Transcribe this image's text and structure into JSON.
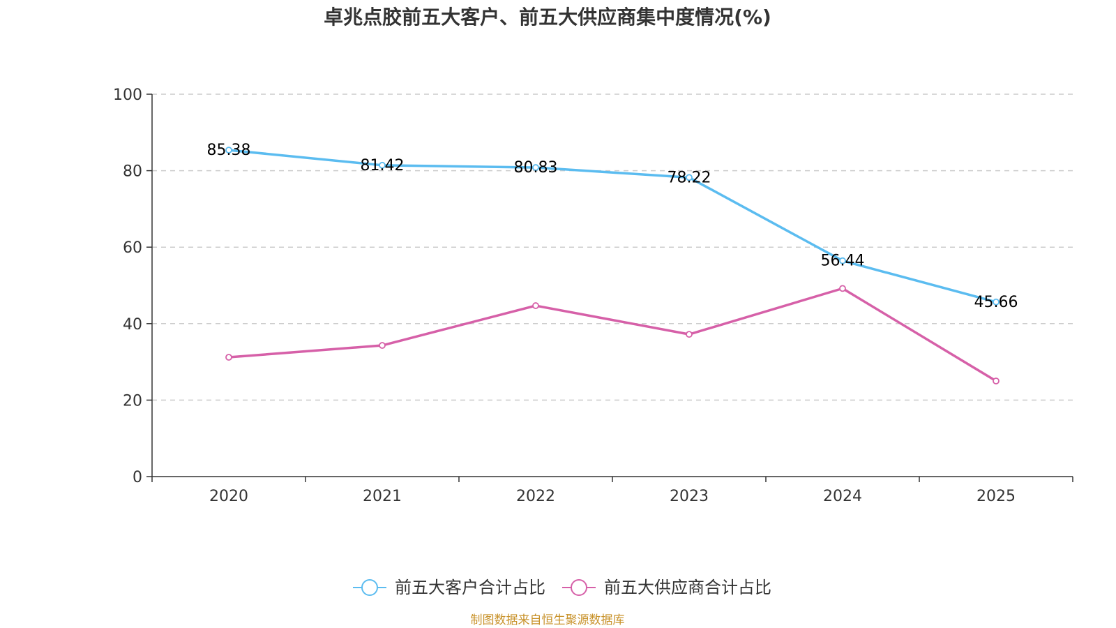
{
  "chart_data": {
    "type": "line",
    "title": "卓兆点胶前五大客户、前五大供应商集中度情况(%)",
    "categories": [
      "2020",
      "2021",
      "2022",
      "2023",
      "2024",
      "2025"
    ],
    "ylim": [
      0,
      100
    ],
    "yticks": [
      "0",
      "20",
      "40",
      "60",
      "80",
      "100"
    ],
    "grid": true,
    "legend_position": "bottom",
    "series": [
      {
        "name": "前五大客户合计占比",
        "color": "#5bbcf0",
        "values": [
          85.38,
          81.42,
          80.83,
          78.22,
          56.44,
          45.66
        ],
        "labels": [
          "85.38",
          "81.42",
          "80.83",
          "78.22",
          "56.44",
          "45.66"
        ],
        "show_labels": true
      },
      {
        "name": "前五大供应商合计占比",
        "color": "#d660a8",
        "values": [
          31.2,
          34.3,
          44.7,
          37.2,
          49.2,
          25.0
        ],
        "show_labels": false
      }
    ],
    "source": "制图数据来自恒生聚源数据库",
    "source_color": "#c8922a"
  }
}
